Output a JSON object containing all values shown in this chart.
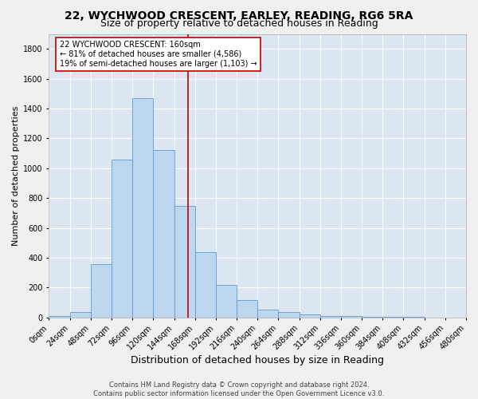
{
  "title": "22, WYCHWOOD CRESCENT, EARLEY, READING, RG6 5RA",
  "subtitle": "Size of property relative to detached houses in Reading",
  "xlabel": "Distribution of detached houses by size in Reading",
  "ylabel": "Number of detached properties",
  "bin_labels": [
    "0sqm",
    "24sqm",
    "48sqm",
    "72sqm",
    "96sqm",
    "120sqm",
    "144sqm",
    "168sqm",
    "192sqm",
    "216sqm",
    "240sqm",
    "264sqm",
    "288sqm",
    "312sqm",
    "336sqm",
    "360sqm",
    "384sqm",
    "408sqm",
    "432sqm",
    "456sqm",
    "480sqm"
  ],
  "bin_edges": [
    0,
    24,
    48,
    72,
    96,
    120,
    144,
    168,
    192,
    216,
    240,
    264,
    288,
    312,
    336,
    360,
    384,
    408,
    432,
    456,
    480
  ],
  "bar_heights": [
    10,
    35,
    360,
    1060,
    1470,
    1120,
    750,
    440,
    220,
    115,
    55,
    35,
    20,
    12,
    8,
    5,
    3,
    2,
    1,
    1
  ],
  "bar_color": "#bdd7ee",
  "bar_edge_color": "#5b9bd5",
  "bg_color": "#dce6f1",
  "grid_color": "#ffffff",
  "vline_x": 160,
  "vline_color": "#c00000",
  "annotation_title": "22 WYCHWOOD CRESCENT: 160sqm",
  "annotation_line1": "← 81% of detached houses are smaller (4,586)",
  "annotation_line2": "19% of semi-detached houses are larger (1,103) →",
  "annotation_box_color": "#ffffff",
  "annotation_border_color": "#c00000",
  "footer1": "Contains HM Land Registry data © Crown copyright and database right 2024.",
  "footer2": "Contains public sector information licensed under the Open Government Licence v3.0.",
  "ylim": [
    0,
    1900
  ],
  "yticks": [
    0,
    200,
    400,
    600,
    800,
    1000,
    1200,
    1400,
    1600,
    1800
  ],
  "title_fontsize": 10,
  "subtitle_fontsize": 9,
  "xlabel_fontsize": 9,
  "ylabel_fontsize": 8,
  "tick_fontsize": 7,
  "footer_fontsize": 6,
  "ann_fontsize": 7
}
